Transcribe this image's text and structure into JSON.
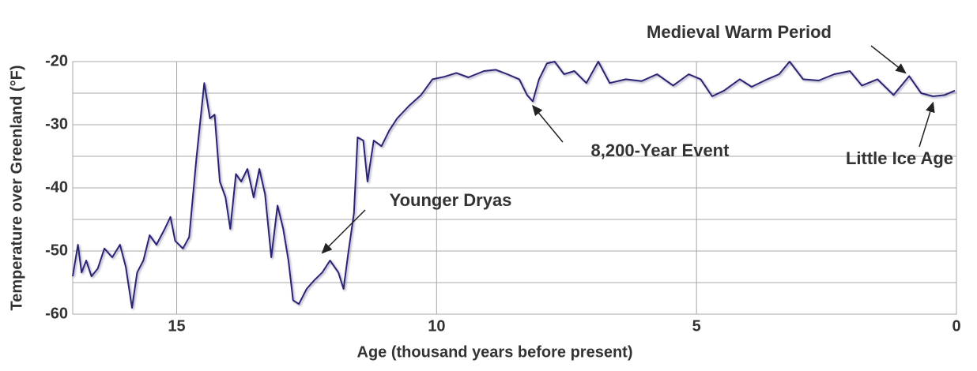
{
  "chart_data": {
    "type": "line",
    "y_label": "Temperature over Greenland (°F)",
    "x_label": "Age (thousand years before present)",
    "x": [
      17.0,
      16.9,
      16.83,
      16.74,
      16.64,
      16.52,
      16.39,
      16.24,
      16.09,
      15.98,
      15.86,
      15.76,
      15.64,
      15.52,
      15.39,
      15.23,
      15.12,
      15.03,
      14.88,
      14.76,
      14.62,
      14.47,
      14.36,
      14.27,
      14.17,
      14.06,
      13.97,
      13.86,
      13.76,
      13.64,
      13.52,
      13.41,
      13.3,
      13.18,
      13.06,
      12.95,
      12.85,
      12.76,
      12.65,
      12.5,
      12.35,
      12.2,
      12.05,
      11.89,
      11.79,
      11.7,
      11.59,
      11.52,
      11.41,
      11.33,
      11.21,
      11.06,
      10.91,
      10.76,
      10.53,
      10.3,
      10.08,
      9.85,
      9.62,
      9.39,
      9.09,
      8.86,
      8.64,
      8.41,
      8.26,
      8.15,
      8.03,
      7.88,
      7.73,
      7.55,
      7.35,
      7.12,
      6.89,
      6.67,
      6.36,
      6.06,
      5.76,
      5.45,
      5.15,
      4.92,
      4.7,
      4.47,
      4.17,
      3.94,
      3.64,
      3.41,
      3.21,
      2.95,
      2.65,
      2.35,
      2.05,
      1.82,
      1.52,
      1.21,
      0.91,
      0.68,
      0.45,
      0.23,
      0.03
    ],
    "series": [
      {
        "color": "#2b2472",
        "values": [
          -54,
          -49,
          -53.4,
          -51.5,
          -54,
          -52.8,
          -49.6,
          -51,
          -49,
          -52.5,
          -59,
          -53.4,
          -51.5,
          -47.5,
          -49,
          -46.5,
          -44.6,
          -48.4,
          -49.6,
          -47.8,
          -35.3,
          -23.4,
          -29,
          -28.4,
          -39,
          -41.5,
          -46.5,
          -37.8,
          -39,
          -37,
          -41.5,
          -37,
          -41,
          -51,
          -42.8,
          -46.5,
          -51.5,
          -57.8,
          -58.4,
          -56,
          -54.6,
          -53.4,
          -51.5,
          -53.4,
          -56,
          -50.3,
          -44,
          -32,
          -32.5,
          -39,
          -32.5,
          -33.4,
          -30.9,
          -29,
          -27,
          -25.3,
          -22.8,
          -22.4,
          -21.8,
          -22.5,
          -21.5,
          -21.3,
          -22,
          -22.8,
          -25.3,
          -26.3,
          -22.8,
          -20.3,
          -20,
          -22,
          -21.5,
          -23.4,
          -20,
          -23.4,
          -22.8,
          -23.1,
          -22,
          -23.8,
          -22,
          -22.8,
          -25.5,
          -24.6,
          -22.8,
          -24,
          -22.8,
          -22,
          -20,
          -22.8,
          -23,
          -22,
          -21.5,
          -23.8,
          -22.8,
          -25.3,
          -22.3,
          -25,
          -25.5,
          -25.3,
          -24.6
        ]
      }
    ],
    "xlim": [
      17,
      0
    ],
    "xticks": [
      15,
      10,
      5,
      0
    ],
    "ylim": [
      -60,
      -20
    ],
    "yticks": [
      -60,
      -50,
      -40,
      -30,
      -20
    ],
    "ygrid": [
      -60,
      -55,
      -50,
      -45,
      -40,
      -35,
      -30,
      -25,
      -20
    ],
    "grid": true,
    "annotations": [
      {
        "text": "Medieval Warm Period",
        "x": 0.98,
        "y": -21.8
      },
      {
        "text": "8,200-Year Event",
        "x": 8.15,
        "y": -27
      },
      {
        "text": "Little Ice Age",
        "x": 0.45,
        "y": -26.5
      },
      {
        "text": "Younger Dryas",
        "x": 12.2,
        "y": -50.3
      }
    ]
  }
}
